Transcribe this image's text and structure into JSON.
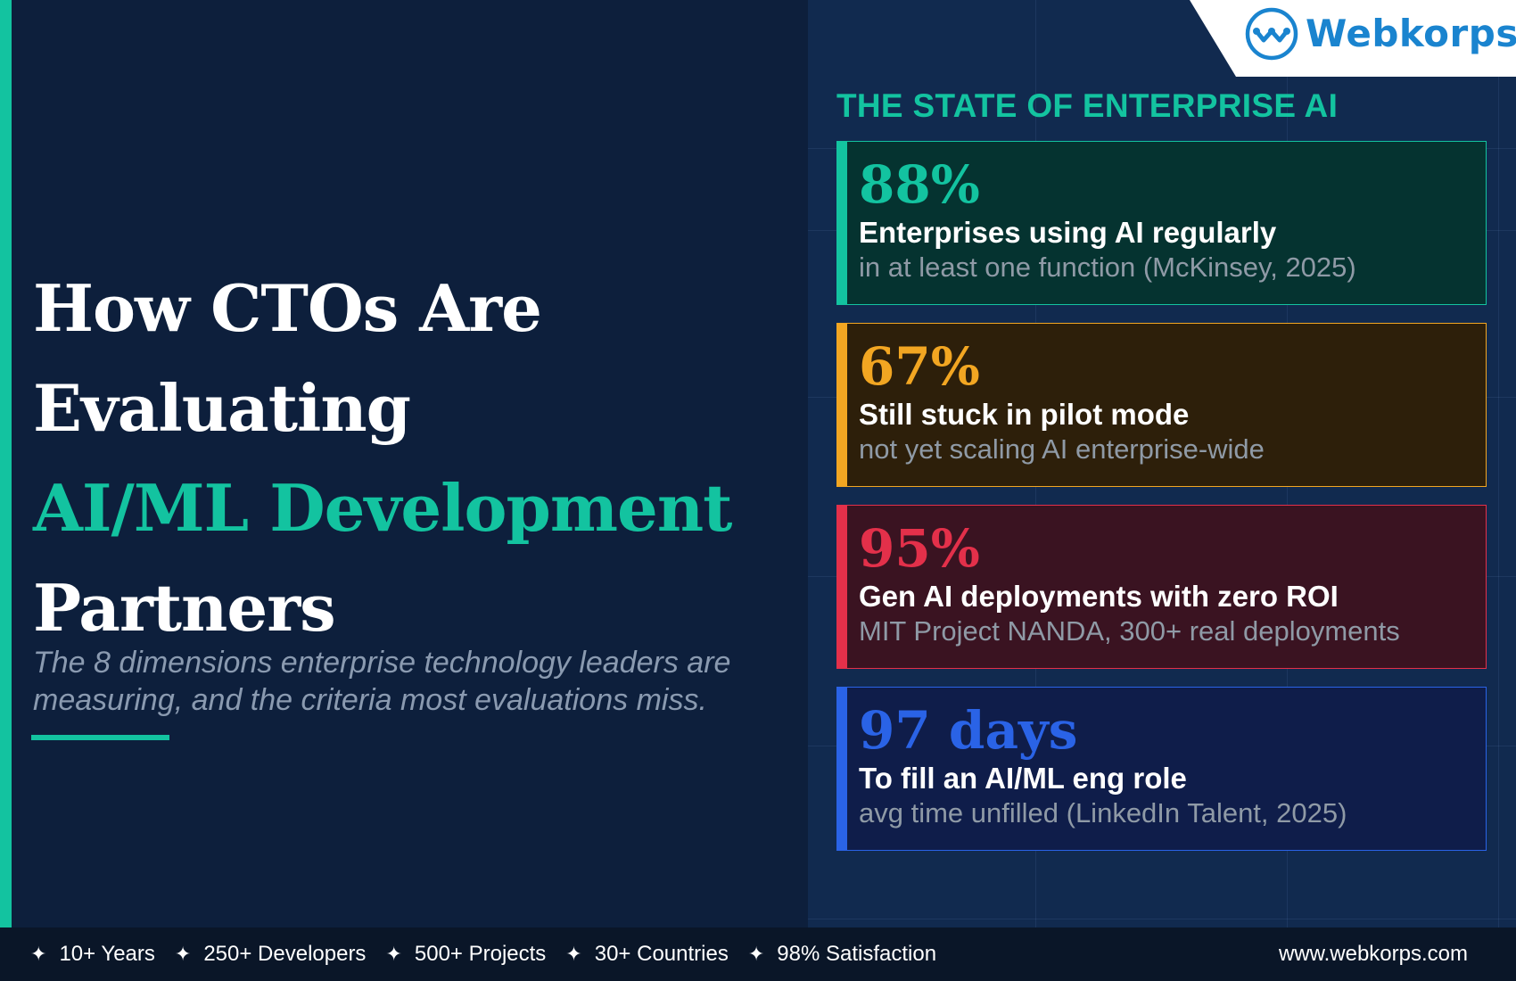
{
  "brand": {
    "name": "Webkorps",
    "logo_icon": "webkorps-w-logo-icon",
    "color": "#1a84cf"
  },
  "headline": {
    "line1": "How CTOs Are",
    "line2": "Evaluating",
    "line3": "AI/ML Development",
    "line4": "Partners"
  },
  "subtitle": {
    "line1": "The 8 dimensions enterprise technology leaders are",
    "line2": "measuring, and the criteria most evaluations miss."
  },
  "section_title": "THE STATE OF ENTERPRISE AI",
  "stats": [
    {
      "value": "88%",
      "label": "Enterprises using AI regularly",
      "detail": "in at least one function (McKinsey, 2025)",
      "accent": "#13c3a0",
      "background": "#053330"
    },
    {
      "value": "67%",
      "label": "Still stuck in pilot mode",
      "detail": "not yet scaling AI enterprise-wide",
      "accent": "#f2a622",
      "background": "#2d1f0a"
    },
    {
      "value": "95%",
      "label": "Gen AI deployments with zero ROI",
      "detail": "MIT Project NANDA, 300+ real deployments",
      "accent": "#e3304a",
      "background": "#3a1321"
    },
    {
      "value": "97 days",
      "label": "To fill an AI/ML eng role",
      "detail": "avg time unfilled (LinkedIn Talent, 2025)",
      "accent": "#2a63e6",
      "background": "#0f1d4a"
    }
  ],
  "footer": {
    "items": [
      "10+ Years",
      "250+ Developers",
      "500+ Projects",
      "30+ Countries",
      "98% Satisfaction"
    ],
    "star_icon": "four-point-star-icon",
    "url": "www.webkorps.com"
  },
  "colors": {
    "teal_accent": "#13c3a0",
    "left_background": "#0d1f3c",
    "right_background": "#112a4f"
  }
}
